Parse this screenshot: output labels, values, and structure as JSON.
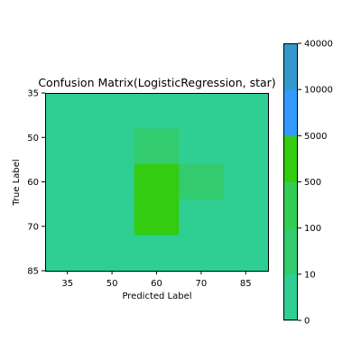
{
  "chart_data": {
    "type": "heatmap",
    "title": "Confusion Matrix(LogisticRegression, star)",
    "xlabel": "Predicted Label",
    "ylabel": "True Label",
    "x_categories": [
      "35",
      "50",
      "60",
      "70",
      "85"
    ],
    "y_categories": [
      "35",
      "50",
      "60",
      "70",
      "85"
    ],
    "values": [
      [
        0,
        0,
        0,
        0,
        0
      ],
      [
        0,
        0,
        10,
        0,
        0
      ],
      [
        0,
        0,
        500,
        10,
        0
      ],
      [
        0,
        0,
        500,
        0,
        0
      ],
      [
        0,
        0,
        0,
        0,
        0
      ]
    ],
    "grid": false,
    "colorbar": {
      "placement": "right",
      "ticks": [
        "0",
        "10",
        "100",
        "500",
        "5000",
        "10000",
        "40000"
      ],
      "bands": [
        {
          "from": "0",
          "to": "10",
          "color": "#2fcf93"
        },
        {
          "from": "10",
          "to": "100",
          "color": "#32cc6e"
        },
        {
          "from": "100",
          "to": "500",
          "color": "#33cc55"
        },
        {
          "from": "500",
          "to": "5000",
          "color": "#33cc11"
        },
        {
          "from": "5000",
          "to": "10000",
          "color": "#3399ff"
        },
        {
          "from": "10000",
          "to": "40000",
          "color": "#3399cc"
        }
      ]
    }
  }
}
